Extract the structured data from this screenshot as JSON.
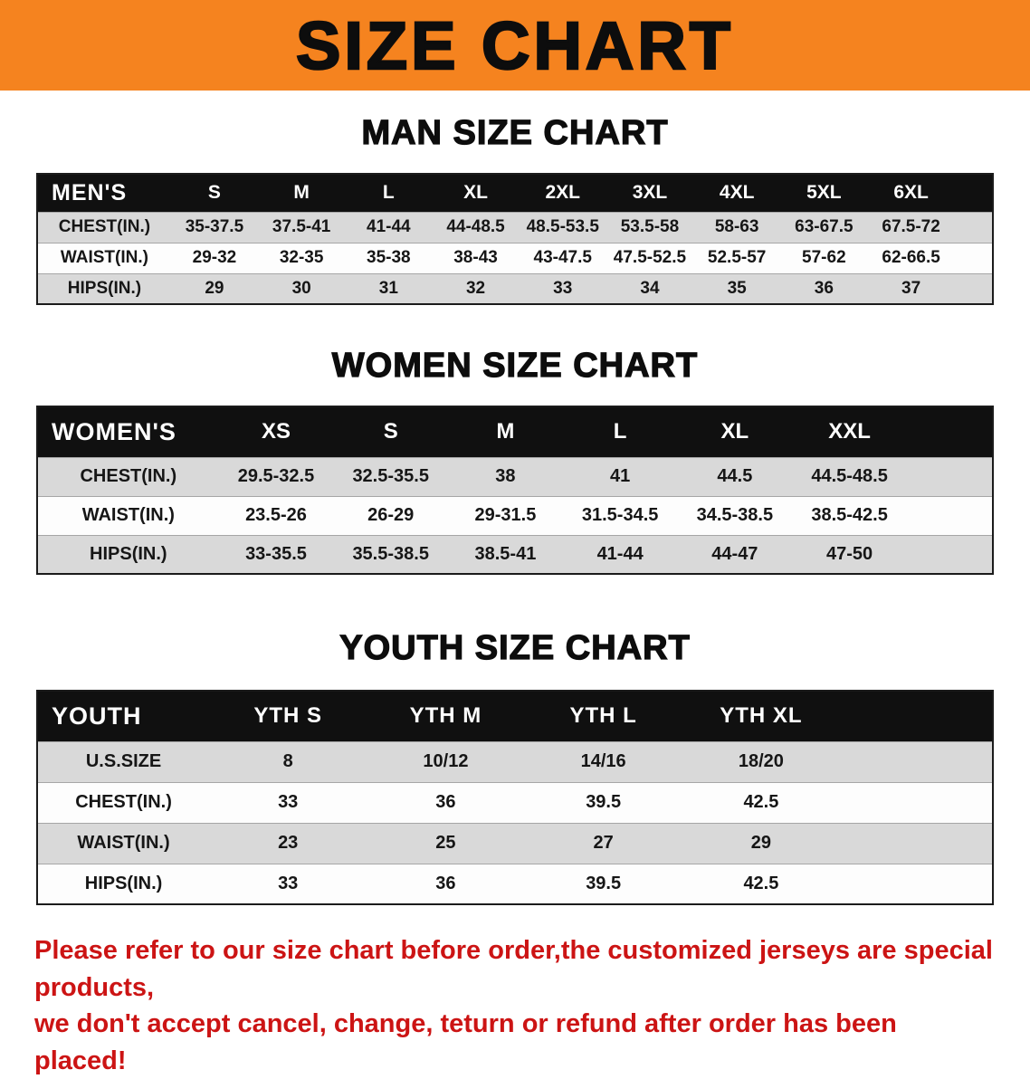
{
  "banner": {
    "title": "SIZE CHART"
  },
  "colors": {
    "banner_bg": "#f5831f",
    "header_bg": "#101010",
    "shade_row": "#d9d9d9",
    "disclaimer_red": "#cc1414"
  },
  "sections": [
    {
      "id": "men",
      "heading": "MAN SIZE CHART",
      "table": {
        "header": [
          "MEN'S",
          "S",
          "M",
          "L",
          "XL",
          "2XL",
          "3XL",
          "4XL",
          "5XL",
          "6XL"
        ],
        "rows": [
          [
            "CHEST(IN.)",
            "35-37.5",
            "37.5-41",
            "41-44",
            "44-48.5",
            "48.5-53.5",
            "53.5-58",
            "58-63",
            "63-67.5",
            "67.5-72"
          ],
          [
            "WAIST(IN.)",
            "29-32",
            "32-35",
            "35-38",
            "38-43",
            "43-47.5",
            "47.5-52.5",
            "52.5-57",
            "57-62",
            "62-66.5"
          ],
          [
            "HIPS(IN.)",
            "29",
            "30",
            "31",
            "32",
            "33",
            "34",
            "35",
            "36",
            "37"
          ]
        ]
      }
    },
    {
      "id": "women",
      "heading": "WOMEN SIZE CHART",
      "table": {
        "header": [
          "WOMEN'S",
          "XS",
          "S",
          "M",
          "L",
          "XL",
          "XXL"
        ],
        "rows": [
          [
            "CHEST(IN.)",
            "29.5-32.5",
            "32.5-35.5",
            "38",
            "41",
            "44.5",
            "44.5-48.5"
          ],
          [
            "WAIST(IN.)",
            "23.5-26",
            "26-29",
            "29-31.5",
            "31.5-34.5",
            "34.5-38.5",
            "38.5-42.5"
          ],
          [
            "HIPS(IN.)",
            "33-35.5",
            "35.5-38.5",
            "38.5-41",
            "41-44",
            "44-47",
            "47-50"
          ]
        ]
      }
    },
    {
      "id": "youth",
      "heading": "YOUTH SIZE CHART",
      "table": {
        "header": [
          "YOUTH",
          "YTH S",
          "YTH M",
          "YTH L",
          "YTH XL"
        ],
        "rows": [
          [
            "U.S.SIZE",
            "8",
            "10/12",
            "14/16",
            "18/20"
          ],
          [
            "CHEST(IN.)",
            "33",
            "36",
            "39.5",
            "42.5"
          ],
          [
            "WAIST(IN.)",
            "23",
            "25",
            "27",
            "29"
          ],
          [
            "HIPS(IN.)",
            "33",
            "36",
            "39.5",
            "42.5"
          ]
        ]
      }
    }
  ],
  "disclaimer": {
    "line1": "Please refer to our size chart before order,the customized jerseys are special products,",
    "line2": "we don't accept cancel, change, teturn or refund after order has been placed!"
  }
}
